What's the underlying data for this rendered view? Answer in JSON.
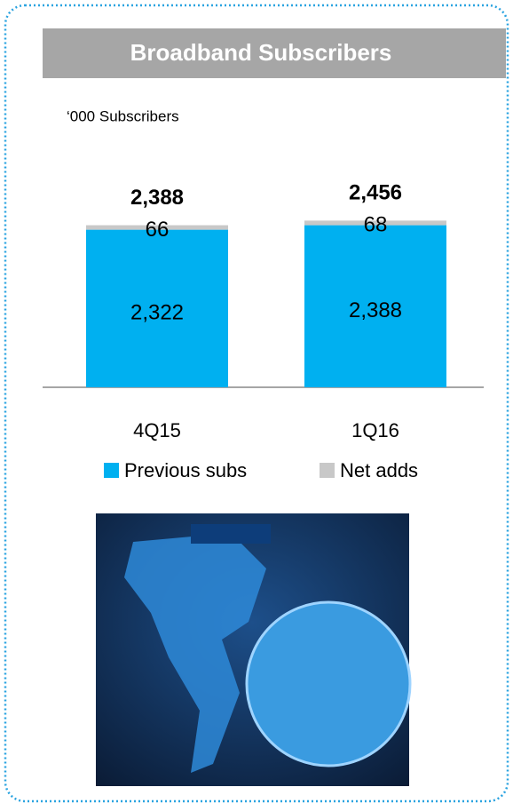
{
  "chart_data": {
    "type": "bar",
    "stacked": true,
    "title": "Broadband Subscribers",
    "subtitle": "‘000 Subscribers",
    "categories": [
      "4Q15",
      "1Q16"
    ],
    "series": [
      {
        "name": "Previous subs",
        "color": "#00b0f0",
        "values": [
          2322,
          2388
        ],
        "value_labels": [
          "2,322",
          "2,388"
        ]
      },
      {
        "name": "Net adds",
        "color": "#c8c8c8",
        "values": [
          66,
          68
        ]
      }
    ],
    "totals": [
      {
        "value": 2388,
        "label": "2,388"
      },
      {
        "value": 2456,
        "label": "2,456"
      }
    ],
    "ylim": [
      0,
      2500
    ]
  }
}
